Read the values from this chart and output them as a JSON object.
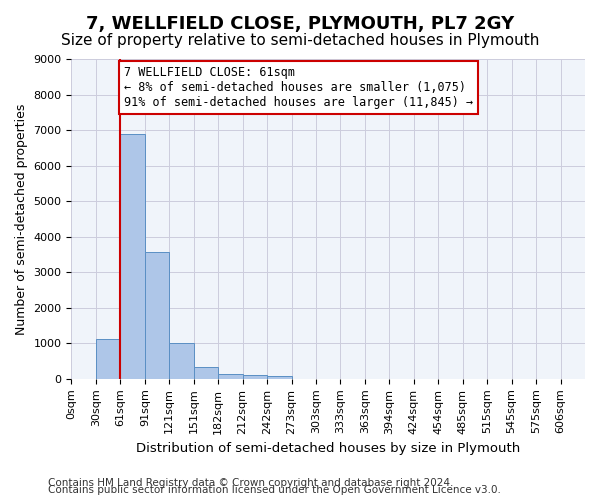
{
  "title": "7, WELLFIELD CLOSE, PLYMOUTH, PL7 2GY",
  "subtitle": "Size of property relative to semi-detached houses in Plymouth",
  "xlabel": "Distribution of semi-detached houses by size in Plymouth",
  "ylabel": "Number of semi-detached properties",
  "bin_labels": [
    "0sqm",
    "30sqm",
    "61sqm",
    "91sqm",
    "121sqm",
    "151sqm",
    "182sqm",
    "212sqm",
    "242sqm",
    "273sqm",
    "303sqm",
    "333sqm",
    "363sqm",
    "394sqm",
    "424sqm",
    "454sqm",
    "485sqm",
    "515sqm",
    "545sqm",
    "575sqm",
    "606sqm"
  ],
  "bar_values": [
    0,
    1120,
    6900,
    3560,
    1000,
    330,
    145,
    110,
    80,
    0,
    0,
    0,
    0,
    0,
    0,
    0,
    0,
    0,
    0,
    0
  ],
  "bar_color": "#aec6e8",
  "bar_edge_color": "#5a8fc4",
  "reference_line_x": 2,
  "reference_line_color": "#cc0000",
  "annotation_text": "7 WELLFIELD CLOSE: 61sqm\n← 8% of semi-detached houses are smaller (1,075)\n91% of semi-detached houses are larger (11,845) →",
  "annotation_box_color": "#ffffff",
  "annotation_box_edge": "#cc0000",
  "ylim": [
    0,
    9000
  ],
  "yticks": [
    0,
    1000,
    2000,
    3000,
    4000,
    5000,
    6000,
    7000,
    8000,
    9000
  ],
  "footer_line1": "Contains HM Land Registry data © Crown copyright and database right 2024.",
  "footer_line2": "Contains public sector information licensed under the Open Government Licence v3.0.",
  "bg_color": "#f0f4fa",
  "grid_color": "#ccccdd",
  "title_fontsize": 13,
  "subtitle_fontsize": 11,
  "axis_label_fontsize": 9,
  "tick_fontsize": 8,
  "annotation_fontsize": 8.5,
  "footer_fontsize": 7.5
}
